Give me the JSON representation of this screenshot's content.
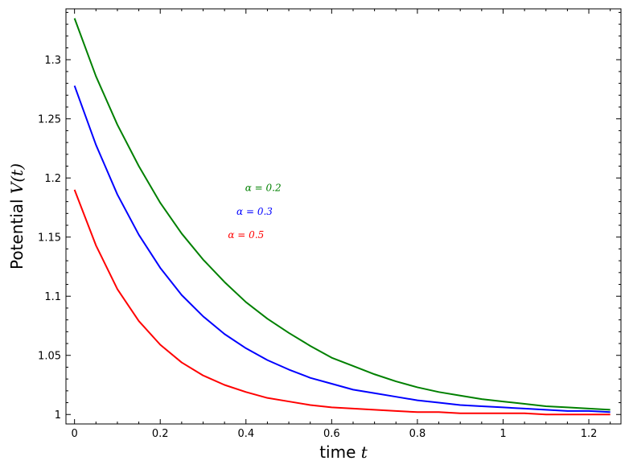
{
  "chart_data": {
    "type": "line",
    "xlim": [
      -0.02,
      1.275
    ],
    "ylim": [
      0.992,
      1.343
    ],
    "xticks": [
      0,
      0.2,
      0.4,
      0.6,
      0.8,
      1,
      1.2
    ],
    "xtick_labels": [
      "0",
      "0.2",
      "0.4",
      "0.6",
      "0.8",
      "1",
      "1.2"
    ],
    "yticks": [
      1,
      1.05,
      1.1,
      1.15,
      1.2,
      1.25,
      1.3
    ],
    "ytick_labels": [
      "1",
      "1.05",
      "1.1",
      "1.15",
      "1.2",
      "1.25",
      "1.3"
    ],
    "xlabel": {
      "text": "time ",
      "var": "t"
    },
    "ylabel": {
      "text": "Potential ",
      "var": "V(t)"
    },
    "grid": false,
    "series": [
      {
        "name": "α = 0.2",
        "color": "#008000",
        "x": [
          0,
          0.05,
          0.1,
          0.15,
          0.2,
          0.25,
          0.3,
          0.35,
          0.4,
          0.45,
          0.5,
          0.55,
          0.6,
          0.65,
          0.7,
          0.75,
          0.8,
          0.85,
          0.9,
          0.95,
          1.0,
          1.05,
          1.1,
          1.15,
          1.2,
          1.25
        ],
        "values": [
          1.335,
          1.286,
          1.245,
          1.21,
          1.179,
          1.153,
          1.131,
          1.112,
          1.095,
          1.081,
          1.069,
          1.058,
          1.048,
          1.041,
          1.034,
          1.028,
          1.023,
          1.019,
          1.016,
          1.013,
          1.011,
          1.009,
          1.007,
          1.006,
          1.005,
          1.004
        ]
      },
      {
        "name": "α = 0.3",
        "color": "#0000ff",
        "x": [
          0,
          0.05,
          0.1,
          0.15,
          0.2,
          0.25,
          0.3,
          0.35,
          0.4,
          0.45,
          0.5,
          0.55,
          0.6,
          0.65,
          0.7,
          0.75,
          0.8,
          0.85,
          0.9,
          0.95,
          1.0,
          1.05,
          1.1,
          1.15,
          1.2,
          1.25
        ],
        "values": [
          1.278,
          1.228,
          1.186,
          1.152,
          1.124,
          1.101,
          1.083,
          1.068,
          1.056,
          1.046,
          1.038,
          1.031,
          1.026,
          1.021,
          1.018,
          1.015,
          1.012,
          1.01,
          1.008,
          1.007,
          1.006,
          1.005,
          1.004,
          1.003,
          1.003,
          1.002
        ]
      },
      {
        "name": "α = 0.5",
        "color": "#ff0000",
        "x": [
          0,
          0.05,
          0.1,
          0.15,
          0.2,
          0.25,
          0.3,
          0.35,
          0.4,
          0.45,
          0.5,
          0.55,
          0.6,
          0.65,
          0.7,
          0.75,
          0.8,
          0.85,
          0.9,
          0.95,
          1.0,
          1.05,
          1.1,
          1.15,
          1.2,
          1.25
        ],
        "values": [
          1.19,
          1.143,
          1.106,
          1.079,
          1.059,
          1.044,
          1.033,
          1.025,
          1.019,
          1.014,
          1.011,
          1.008,
          1.006,
          1.005,
          1.004,
          1.003,
          1.002,
          1.002,
          1.001,
          1.001,
          1.001,
          1.001,
          1.0,
          1.0,
          1.0,
          1.0
        ]
      }
    ],
    "annotations": [
      {
        "text": "α = 0.2",
        "x": 0.398,
        "y": 1.189,
        "color": "#008000"
      },
      {
        "text": "α = 0.3",
        "x": 0.378,
        "y": 1.169,
        "color": "#0000ff"
      },
      {
        "text": "α = 0.5",
        "x": 0.358,
        "y": 1.149,
        "color": "#ff0000"
      }
    ]
  }
}
